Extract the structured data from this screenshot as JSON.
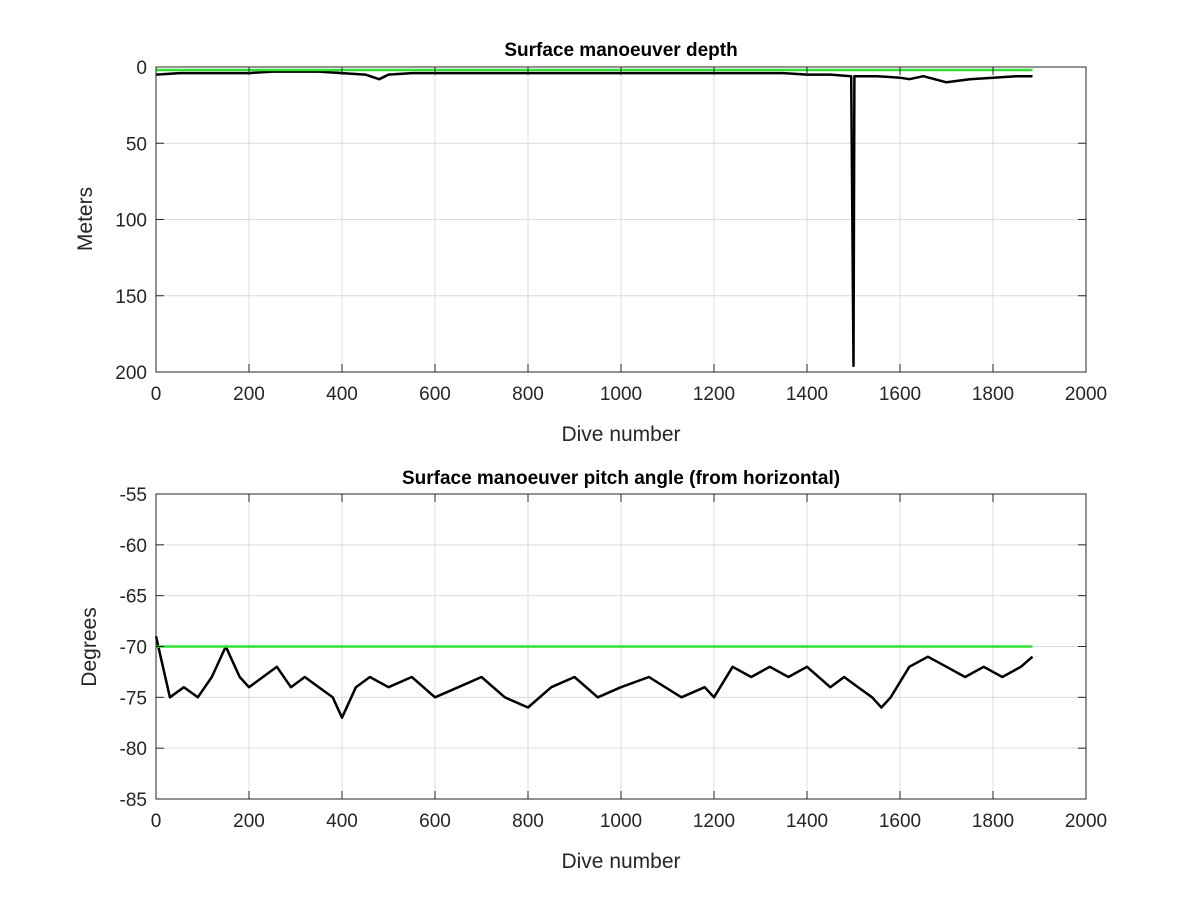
{
  "chart_data": [
    {
      "type": "line",
      "title": "Surface manoeuver depth",
      "xlabel": "Dive number",
      "ylabel": "Meters",
      "xlim": [
        0,
        2000
      ],
      "ylim": [
        0,
        200
      ],
      "y_reversed": true,
      "grid": true,
      "x_ticks": [
        "0",
        "200",
        "400",
        "600",
        "800",
        "1000",
        "1200",
        "1400",
        "1600",
        "1800",
        "2000"
      ],
      "y_ticks": [
        "0",
        "50",
        "100",
        "150",
        "200"
      ],
      "series": [
        {
          "color": "#000000",
          "x": [
            1,
            50,
            100,
            150,
            200,
            250,
            300,
            350,
            400,
            450,
            480,
            500,
            550,
            600,
            650,
            700,
            750,
            800,
            850,
            900,
            950,
            1000,
            1050,
            1100,
            1150,
            1200,
            1250,
            1300,
            1350,
            1400,
            1450,
            1495,
            1500,
            1502,
            1505,
            1550,
            1600,
            1620,
            1650,
            1700,
            1750,
            1800,
            1850,
            1885
          ],
          "y": [
            5,
            4,
            4,
            4,
            4,
            3,
            3,
            3,
            4,
            5,
            8,
            5,
            4,
            4,
            4,
            4,
            4,
            4,
            4,
            4,
            4,
            4,
            4,
            4,
            4,
            4,
            4,
            4,
            4,
            5,
            5,
            6,
            196,
            6,
            6,
            6,
            7,
            8,
            6,
            10,
            8,
            7,
            6,
            6
          ]
        },
        {
          "color": "#33dd33",
          "x": [
            0,
            1885
          ],
          "y": [
            2,
            2
          ]
        }
      ]
    },
    {
      "type": "line",
      "title": "Surface manoeuver pitch angle (from horizontal)",
      "xlabel": "Dive number",
      "ylabel": "Degrees",
      "xlim": [
        0,
        2000
      ],
      "ylim": [
        -85,
        -55
      ],
      "grid": true,
      "x_ticks": [
        "0",
        "200",
        "400",
        "600",
        "800",
        "1000",
        "1200",
        "1400",
        "1600",
        "1800",
        "2000"
      ],
      "y_ticks": [
        "-55",
        "-60",
        "-65",
        "-70",
        "-75",
        "-80",
        "-85"
      ],
      "series": [
        {
          "color": "#000000",
          "x": [
            0,
            30,
            60,
            90,
            120,
            150,
            160,
            180,
            200,
            230,
            260,
            290,
            320,
            350,
            380,
            400,
            430,
            460,
            500,
            550,
            600,
            650,
            700,
            750,
            800,
            850,
            900,
            950,
            1000,
            1060,
            1130,
            1180,
            1200,
            1240,
            1280,
            1320,
            1360,
            1400,
            1450,
            1480,
            1510,
            1540,
            1560,
            1580,
            1620,
            1660,
            1700,
            1740,
            1780,
            1820,
            1860,
            1885
          ],
          "y": [
            -69,
            -75,
            -74,
            -75,
            -73,
            -70,
            -71,
            -73,
            -74,
            -73,
            -72,
            -74,
            -73,
            -74,
            -75,
            -77,
            -74,
            -73,
            -74,
            -73,
            -75,
            -74,
            -73,
            -75,
            -76,
            -74,
            -73,
            -75,
            -74,
            -73,
            -75,
            -74,
            -75,
            -72,
            -73,
            -72,
            -73,
            -72,
            -74,
            -73,
            -74,
            -75,
            -76,
            -75,
            -72,
            -71,
            -72,
            -73,
            -72,
            -73,
            -72,
            -71
          ]
        },
        {
          "color": "#33dd33",
          "x": [
            0,
            1885
          ],
          "y": [
            -70,
            -70
          ]
        }
      ]
    }
  ]
}
